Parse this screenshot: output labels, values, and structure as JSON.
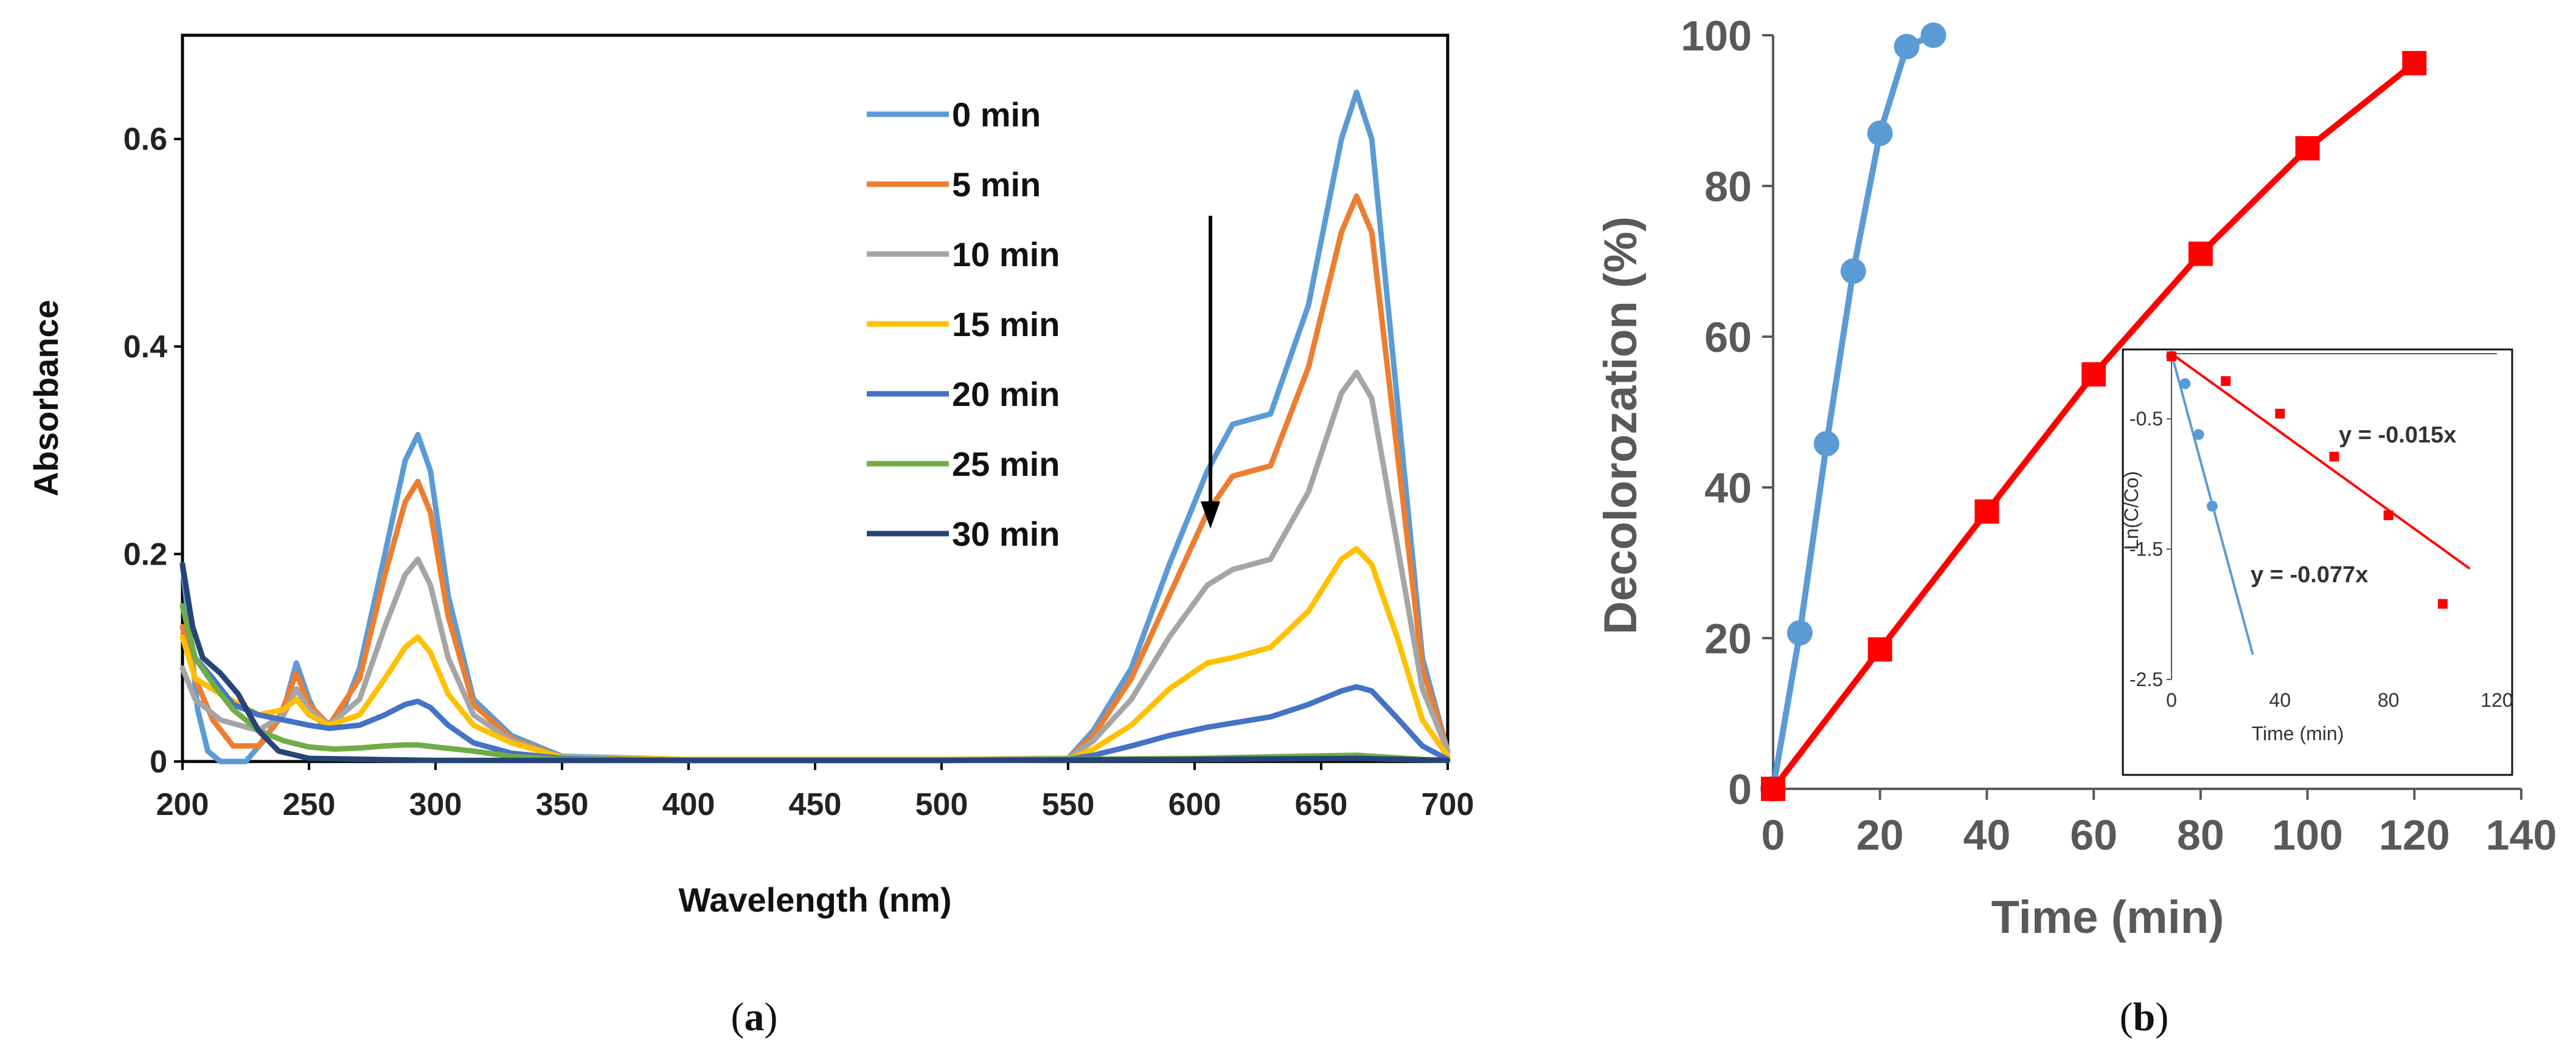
{
  "chart_data": [
    {
      "type": "line",
      "id": "a",
      "caption": "a",
      "xlabel": "Wavelength (nm)",
      "ylabel": "Absorbance",
      "xlim": [
        200,
        700
      ],
      "ylim": [
        0,
        0.7
      ],
      "xticks": [
        200,
        250,
        300,
        350,
        400,
        450,
        500,
        550,
        600,
        650,
        700
      ],
      "yticks": [
        0,
        0.2,
        0.4,
        0.6
      ],
      "ytick_labels": [
        "0",
        "0.2",
        "0.4",
        "0.6"
      ],
      "legend_position": "top-right",
      "annotations": [
        {
          "type": "arrow",
          "direction": "down",
          "x": 608,
          "from": 0.53,
          "to": 0.23
        }
      ],
      "series": [
        {
          "name": "0 min",
          "color": "#5B9BD5",
          "points": [
            [
              200,
              0.19
            ],
            [
              203,
              0.12
            ],
            [
              206,
              0.05
            ],
            [
              210,
              0.01
            ],
            [
              215,
              0
            ],
            [
              225,
              0
            ],
            [
              232,
              0.02
            ],
            [
              240,
              0.05
            ],
            [
              245,
              0.095
            ],
            [
              250,
              0.06
            ],
            [
              255,
              0.035
            ],
            [
              262,
              0.04
            ],
            [
              270,
              0.09
            ],
            [
              280,
              0.2
            ],
            [
              288,
              0.29
            ],
            [
              293,
              0.315
            ],
            [
              298,
              0.28
            ],
            [
              305,
              0.16
            ],
            [
              315,
              0.06
            ],
            [
              330,
              0.025
            ],
            [
              350,
              0.005
            ],
            [
              400,
              0.002
            ],
            [
              500,
              0.002
            ],
            [
              550,
              0.003
            ],
            [
              560,
              0.03
            ],
            [
              575,
              0.09
            ],
            [
              590,
              0.19
            ],
            [
              605,
              0.28
            ],
            [
              615,
              0.325
            ],
            [
              630,
              0.335
            ],
            [
              645,
              0.44
            ],
            [
              658,
              0.6
            ],
            [
              664,
              0.645
            ],
            [
              670,
              0.6
            ],
            [
              680,
              0.35
            ],
            [
              690,
              0.1
            ],
            [
              700,
              0.01
            ]
          ]
        },
        {
          "name": "5 min",
          "color": "#ED7D31",
          "points": [
            [
              200,
              0.13
            ],
            [
              205,
              0.08
            ],
            [
              212,
              0.04
            ],
            [
              220,
              0.015
            ],
            [
              230,
              0.015
            ],
            [
              238,
              0.04
            ],
            [
              245,
              0.085
            ],
            [
              250,
              0.055
            ],
            [
              258,
              0.035
            ],
            [
              270,
              0.08
            ],
            [
              280,
              0.18
            ],
            [
              288,
              0.25
            ],
            [
              293,
              0.27
            ],
            [
              298,
              0.24
            ],
            [
              305,
              0.14
            ],
            [
              315,
              0.055
            ],
            [
              330,
              0.022
            ],
            [
              350,
              0.004
            ],
            [
              400,
              0.002
            ],
            [
              500,
              0.002
            ],
            [
              550,
              0.003
            ],
            [
              560,
              0.025
            ],
            [
              575,
              0.08
            ],
            [
              590,
              0.16
            ],
            [
              605,
              0.24
            ],
            [
              615,
              0.275
            ],
            [
              630,
              0.285
            ],
            [
              645,
              0.38
            ],
            [
              658,
              0.51
            ],
            [
              664,
              0.545
            ],
            [
              670,
              0.51
            ],
            [
              680,
              0.3
            ],
            [
              690,
              0.09
            ],
            [
              700,
              0.01
            ]
          ]
        },
        {
          "name": "10 min",
          "color": "#A5A5A5",
          "points": [
            [
              200,
              0.09
            ],
            [
              205,
              0.06
            ],
            [
              215,
              0.04
            ],
            [
              230,
              0.03
            ],
            [
              240,
              0.045
            ],
            [
              245,
              0.07
            ],
            [
              250,
              0.05
            ],
            [
              258,
              0.035
            ],
            [
              270,
              0.06
            ],
            [
              280,
              0.13
            ],
            [
              288,
              0.18
            ],
            [
              293,
              0.195
            ],
            [
              298,
              0.17
            ],
            [
              305,
              0.1
            ],
            [
              315,
              0.045
            ],
            [
              330,
              0.02
            ],
            [
              350,
              0.004
            ],
            [
              400,
              0.002
            ],
            [
              500,
              0.002
            ],
            [
              550,
              0.003
            ],
            [
              560,
              0.02
            ],
            [
              575,
              0.06
            ],
            [
              590,
              0.12
            ],
            [
              605,
              0.17
            ],
            [
              615,
              0.185
            ],
            [
              630,
              0.195
            ],
            [
              645,
              0.26
            ],
            [
              658,
              0.355
            ],
            [
              664,
              0.375
            ],
            [
              670,
              0.35
            ],
            [
              680,
              0.21
            ],
            [
              690,
              0.07
            ],
            [
              700,
              0.01
            ]
          ]
        },
        {
          "name": "15 min",
          "color": "#FFC000",
          "points": [
            [
              200,
              0.12
            ],
            [
              205,
              0.08
            ],
            [
              215,
              0.065
            ],
            [
              230,
              0.045
            ],
            [
              240,
              0.05
            ],
            [
              245,
              0.06
            ],
            [
              250,
              0.045
            ],
            [
              258,
              0.035
            ],
            [
              270,
              0.045
            ],
            [
              280,
              0.08
            ],
            [
              288,
              0.11
            ],
            [
              293,
              0.12
            ],
            [
              298,
              0.105
            ],
            [
              305,
              0.065
            ],
            [
              315,
              0.035
            ],
            [
              330,
              0.018
            ],
            [
              350,
              0.004
            ],
            [
              400,
              0.002
            ],
            [
              500,
              0.002
            ],
            [
              550,
              0.002
            ],
            [
              560,
              0.012
            ],
            [
              575,
              0.035
            ],
            [
              590,
              0.07
            ],
            [
              605,
              0.095
            ],
            [
              615,
              0.1
            ],
            [
              630,
              0.11
            ],
            [
              645,
              0.145
            ],
            [
              658,
              0.195
            ],
            [
              664,
              0.205
            ],
            [
              670,
              0.19
            ],
            [
              680,
              0.12
            ],
            [
              690,
              0.04
            ],
            [
              700,
              0.005
            ]
          ]
        },
        {
          "name": "20 min",
          "color": "#4472C4",
          "points": [
            [
              200,
              0.15
            ],
            [
              205,
              0.1
            ],
            [
              212,
              0.08
            ],
            [
              220,
              0.055
            ],
            [
              230,
              0.045
            ],
            [
              240,
              0.04
            ],
            [
              250,
              0.035
            ],
            [
              258,
              0.032
            ],
            [
              270,
              0.035
            ],
            [
              280,
              0.045
            ],
            [
              288,
              0.055
            ],
            [
              293,
              0.058
            ],
            [
              298,
              0.052
            ],
            [
              305,
              0.035
            ],
            [
              315,
              0.018
            ],
            [
              330,
              0.008
            ],
            [
              350,
              0.003
            ],
            [
              400,
              0.001
            ],
            [
              500,
              0.001
            ],
            [
              550,
              0.002
            ],
            [
              560,
              0.006
            ],
            [
              575,
              0.015
            ],
            [
              590,
              0.025
            ],
            [
              605,
              0.033
            ],
            [
              615,
              0.037
            ],
            [
              630,
              0.043
            ],
            [
              645,
              0.055
            ],
            [
              658,
              0.068
            ],
            [
              664,
              0.072
            ],
            [
              670,
              0.068
            ],
            [
              680,
              0.042
            ],
            [
              690,
              0.015
            ],
            [
              700,
              0.002
            ]
          ]
        },
        {
          "name": "25 min",
          "color": "#70AD47",
          "points": [
            [
              200,
              0.15
            ],
            [
              205,
              0.1
            ],
            [
              212,
              0.075
            ],
            [
              220,
              0.05
            ],
            [
              230,
              0.03
            ],
            [
              240,
              0.02
            ],
            [
              250,
              0.014
            ],
            [
              260,
              0.012
            ],
            [
              270,
              0.013
            ],
            [
              280,
              0.015
            ],
            [
              288,
              0.016
            ],
            [
              293,
              0.016
            ],
            [
              300,
              0.014
            ],
            [
              315,
              0.01
            ],
            [
              330,
              0.005
            ],
            [
              350,
              0.002
            ],
            [
              400,
              0.001
            ],
            [
              500,
              0.001
            ],
            [
              600,
              0.003
            ],
            [
              640,
              0.005
            ],
            [
              664,
              0.006
            ],
            [
              690,
              0.002
            ],
            [
              700,
              0.001
            ]
          ]
        },
        {
          "name": "30 min",
          "color": "#264478",
          "points": [
            [
              200,
              0.19
            ],
            [
              204,
              0.13
            ],
            [
              208,
              0.1
            ],
            [
              215,
              0.085
            ],
            [
              222,
              0.065
            ],
            [
              230,
              0.03
            ],
            [
              238,
              0.01
            ],
            [
              250,
              0.003
            ],
            [
              300,
              0.001
            ],
            [
              400,
              0.001
            ],
            [
              500,
              0.001
            ],
            [
              600,
              0.002
            ],
            [
              664,
              0.003
            ],
            [
              700,
              0.001
            ]
          ]
        }
      ]
    },
    {
      "type": "line",
      "id": "b",
      "caption": "b",
      "xlabel": "Time (min)",
      "ylabel": "Decolorozation (%)",
      "xlim": [
        0,
        140
      ],
      "ylim": [
        0,
        100
      ],
      "xticks": [
        0,
        20,
        40,
        60,
        80,
        100,
        120,
        140
      ],
      "yticks": [
        0,
        20,
        40,
        60,
        80,
        100
      ],
      "series": [
        {
          "name": "blue",
          "color": "#5B9BD5",
          "marker": "circle",
          "x": [
            0,
            5,
            10,
            15,
            20,
            25,
            30
          ],
          "y": [
            0,
            20.7,
            45.8,
            68.7,
            87,
            98.5,
            100
          ]
        },
        {
          "name": "red",
          "color": "#FF0000",
          "marker": "square",
          "x": [
            0,
            20,
            40,
            60,
            80,
            100,
            120
          ],
          "y": [
            0,
            18.5,
            36.8,
            55,
            71,
            85,
            96.3
          ]
        }
      ],
      "inset": {
        "type": "scatter",
        "xlabel": "Time (min)",
        "ylabel": "Ln(C/Co)",
        "xlim": [
          0,
          120
        ],
        "ylim": [
          -2.5,
          0
        ],
        "xticks": [
          0,
          40,
          80,
          120
        ],
        "yticks": [
          -0.5,
          -1.5,
          -2.5
        ],
        "series": [
          {
            "name": "blue",
            "color": "#5B9BD5",
            "x": [
              0,
              5,
              10,
              15
            ],
            "y": [
              -0.02,
              -0.23,
              -0.62,
              -1.17
            ],
            "fit": {
              "slope": -0.077,
              "x_range": [
                0,
                30
              ]
            },
            "equation": "y = -0.077x"
          },
          {
            "name": "red",
            "color": "#FF0000",
            "x": [
              0,
              20,
              40,
              60,
              80,
              100
            ],
            "y": [
              -0.02,
              -0.21,
              -0.46,
              -0.79,
              -1.24,
              -1.92
            ],
            "fit": {
              "slope": -0.015,
              "x_range": [
                0,
                110
              ]
            },
            "equation": "y = -0.015x"
          }
        ]
      }
    }
  ]
}
